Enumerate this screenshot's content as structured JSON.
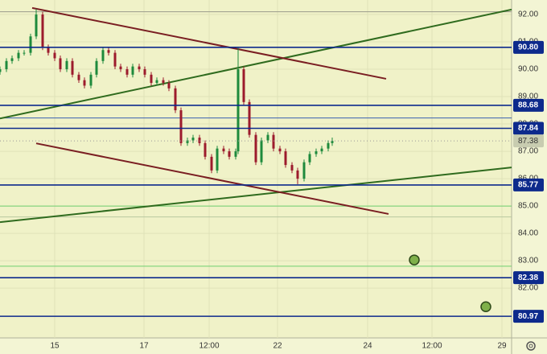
{
  "chart_data": {
    "type": "candlestick",
    "x": [
      0,
      2,
      3.75,
      5.75,
      7.5,
      9.5,
      11.25,
      13.25,
      15,
      17,
      18.75,
      20.75,
      22.5,
      24.5,
      26.25,
      28.25,
      30,
      32,
      33.75,
      35.75,
      37.5,
      39.5,
      41.25,
      43.25,
      45,
      47,
      48.75,
      50.75,
      52.5,
      54.5,
      56.25,
      58.25,
      60,
      62,
      63.75,
      65.75,
      67.5,
      69.5,
      71.25,
      73.25,
      74,
      75.75,
      77.5,
      79.5,
      81.25,
      83.25,
      85,
      87,
      88.75,
      90.75,
      92.5,
      94.5,
      96.25,
      98.25,
      100,
      102,
      103.25
    ],
    "open": [
      89.9,
      90.0,
      90.3,
      90.4,
      90.6,
      90.6,
      91.2,
      92.0,
      90.8,
      90.6,
      90.4,
      90.0,
      90.3,
      89.8,
      89.6,
      89.4,
      89.8,
      90.3,
      90.7,
      90.6,
      90.1,
      90.0,
      89.8,
      90.1,
      90.0,
      89.8,
      89.5,
      89.6,
      89.5,
      89.3,
      88.5,
      87.3,
      87.4,
      87.5,
      87.3,
      86.8,
      86.3,
      87.1,
      87.0,
      86.8,
      87.0,
      90.0,
      88.8,
      87.6,
      86.6,
      87.4,
      87.6,
      87.1,
      87.0,
      86.5,
      86.3,
      86.0,
      86.6,
      86.9,
      87.0,
      87.1,
      87.3
    ],
    "high": [
      90.1,
      90.4,
      90.5,
      90.7,
      90.7,
      91.3,
      92.2,
      92.1,
      90.9,
      90.7,
      90.5,
      90.4,
      90.4,
      89.9,
      89.7,
      89.9,
      90.4,
      90.8,
      90.8,
      90.7,
      90.2,
      90.1,
      90.2,
      90.2,
      90.1,
      89.9,
      89.7,
      89.7,
      89.6,
      89.4,
      88.6,
      87.5,
      87.6,
      87.6,
      87.4,
      86.9,
      87.2,
      87.2,
      87.1,
      87.1,
      90.8,
      90.1,
      88.9,
      87.7,
      87.5,
      87.7,
      87.7,
      87.2,
      87.1,
      86.6,
      86.4,
      86.7,
      87.0,
      87.1,
      87.2,
      87.4,
      87.5
    ],
    "low": [
      89.8,
      89.9,
      90.2,
      90.3,
      90.5,
      90.5,
      91.1,
      90.7,
      90.5,
      90.3,
      89.9,
      89.9,
      89.7,
      89.5,
      89.3,
      89.3,
      89.7,
      90.2,
      90.5,
      90.0,
      89.9,
      89.7,
      89.7,
      89.9,
      89.7,
      89.4,
      89.4,
      89.4,
      89.2,
      88.4,
      87.2,
      87.2,
      87.3,
      87.2,
      86.7,
      86.2,
      86.2,
      86.9,
      86.7,
      86.7,
      86.9,
      88.7,
      87.5,
      86.5,
      86.5,
      87.3,
      87.0,
      86.9,
      86.4,
      86.2,
      85.8,
      85.9,
      86.5,
      86.8,
      86.9,
      87.0,
      87.2
    ],
    "close": [
      90.0,
      90.3,
      90.4,
      90.6,
      90.6,
      91.2,
      92.0,
      90.8,
      90.6,
      90.4,
      90.0,
      90.3,
      89.8,
      89.6,
      89.4,
      89.8,
      90.3,
      90.7,
      90.6,
      90.1,
      90.0,
      89.8,
      90.1,
      90.0,
      89.8,
      89.5,
      89.6,
      89.5,
      89.3,
      88.5,
      87.3,
      87.4,
      87.5,
      87.3,
      86.8,
      86.3,
      87.1,
      87.0,
      86.8,
      87.0,
      90.0,
      88.8,
      87.6,
      86.6,
      87.4,
      87.6,
      87.1,
      87.0,
      86.5,
      86.3,
      86.0,
      86.6,
      86.9,
      87.0,
      87.1,
      87.3,
      87.38
    ],
    "up_color": "#1e8a3c",
    "down_color": "#9c1b2c",
    "xlim": [
      0,
      159
    ],
    "xticks": [
      {
        "value": 17,
        "label": "15"
      },
      {
        "value": 44.75,
        "label": "17"
      },
      {
        "value": 65,
        "label": "12:00"
      },
      {
        "value": 86.25,
        "label": "22"
      },
      {
        "value": 114.25,
        "label": "24"
      },
      {
        "value": 134.25,
        "label": "12:00"
      },
      {
        "value": 156,
        "label": "29"
      }
    ],
    "ylim": [
      80.18,
      92.53
    ],
    "yticks": [
      {
        "value": 82,
        "label": "82.00"
      },
      {
        "value": 83,
        "label": "83.00"
      },
      {
        "value": 84,
        "label": "84.00"
      },
      {
        "value": 85,
        "label": "85.00"
      },
      {
        "value": 86,
        "label": "86.00"
      },
      {
        "value": 87,
        "label": "87.00"
      },
      {
        "value": 88,
        "label": "88.00"
      },
      {
        "value": 89,
        "label": "89.00"
      },
      {
        "value": 90,
        "label": "90.00"
      },
      {
        "value": 91,
        "label": "91.00"
      },
      {
        "value": 92,
        "label": "92.00"
      }
    ],
    "grid": true,
    "levels": [
      {
        "value": 90.8,
        "label": "90.80",
        "color": "#0d2a8c"
      },
      {
        "value": 88.68,
        "label": "88.68",
        "color": "#0d2a8c"
      },
      {
        "value": 87.84,
        "label": "87.84",
        "color": "#0d2a8c"
      },
      {
        "value": 85.77,
        "label": "85.77",
        "color": "#0d2a8c"
      },
      {
        "value": 82.38,
        "label": "82.38",
        "color": "#0d2a8c"
      },
      {
        "value": 80.97,
        "label": "80.97",
        "color": "#0d2a8c"
      }
    ],
    "last_price": {
      "value": 87.38,
      "label": "87.38",
      "color": "#c8ccb0"
    },
    "guide_lines": [
      {
        "value": 92.1,
        "color": "#9a9a8a"
      },
      {
        "value": 88.22,
        "color": "#3a5fb0"
      },
      {
        "value": 85.0,
        "color": "#6fcf6f"
      },
      {
        "value": 84.6,
        "color": "#b8c8a0"
      },
      {
        "value": 82.8,
        "color": "#6fcf6f"
      }
    ],
    "trendlines": [
      {
        "x": [
          0,
          159
        ],
        "y": [
          88.2,
          92.18
        ],
        "color": "#2f6b1e"
      },
      {
        "x": [
          0,
          159
        ],
        "y": [
          84.41,
          86.41
        ],
        "color": "#2f6b1e"
      },
      {
        "x": [
          10,
          120
        ],
        "y": [
          92.24,
          89.65
        ],
        "color": "#7a1e22"
      },
      {
        "x": [
          11.25,
          120.75
        ],
        "y": [
          87.29,
          84.71
        ],
        "color": "#7a1e22"
      }
    ],
    "markers": {
      "x": [
        128.75,
        151
      ],
      "y": [
        83.03,
        81.32
      ],
      "color": "#7fb04a"
    }
  }
}
